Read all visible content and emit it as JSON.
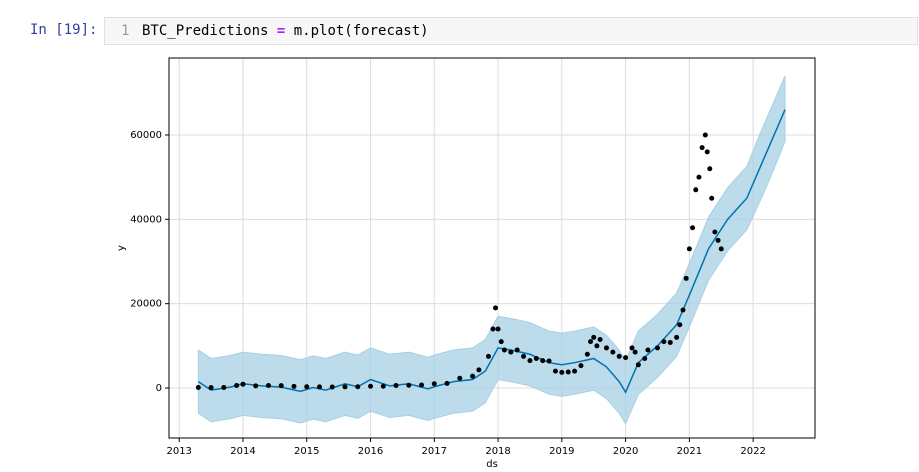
{
  "cell": {
    "prompt": "In [19]:",
    "line_number": "1",
    "code": [
      "BTC_Predictions ",
      "=",
      " m.plot(forecast)"
    ]
  },
  "chart_data": {
    "type": "prophet",
    "xlabel": "ds",
    "ylabel": "y",
    "xlim": [
      2012.84,
      2022.97
    ],
    "ylim": [
      -11860,
      78260
    ],
    "xticks": [
      2013,
      2014,
      2015,
      2016,
      2017,
      2018,
      2019,
      2020,
      2021,
      2022
    ],
    "yticks": [
      0,
      20000,
      40000,
      60000
    ],
    "grid": true,
    "observed": {
      "color": "#000000",
      "x": [
        2013.3,
        2013.5,
        2013.7,
        2013.9,
        2014.0,
        2014.2,
        2014.4,
        2014.6,
        2014.8,
        2015.0,
        2015.2,
        2015.4,
        2015.6,
        2015.8,
        2016.0,
        2016.2,
        2016.4,
        2016.6,
        2016.8,
        2017.0,
        2017.2,
        2017.4,
        2017.6,
        2017.7,
        2017.85,
        2017.92,
        2017.96,
        2018.0,
        2018.05,
        2018.1,
        2018.2,
        2018.3,
        2018.4,
        2018.5,
        2018.6,
        2018.7,
        2018.8,
        2018.9,
        2019.0,
        2019.1,
        2019.2,
        2019.3,
        2019.4,
        2019.45,
        2019.5,
        2019.55,
        2019.6,
        2019.7,
        2019.8,
        2019.9,
        2020.0,
        2020.1,
        2020.15,
        2020.2,
        2020.3,
        2020.35,
        2020.5,
        2020.6,
        2020.7,
        2020.8,
        2020.85,
        2020.9,
        2020.95,
        2021.0,
        2021.05,
        2021.1,
        2021.15,
        2021.2,
        2021.25,
        2021.28,
        2021.32,
        2021.35,
        2021.4,
        2021.45,
        2021.5
      ],
      "values": [
        120,
        100,
        130,
        600,
        900,
        500,
        600,
        550,
        380,
        300,
        250,
        240,
        270,
        300,
        420,
        420,
        600,
        650,
        700,
        1000,
        1100,
        2300,
        2800,
        4300,
        7500,
        14000,
        19000,
        14000,
        11000,
        9000,
        8500,
        9000,
        7500,
        6500,
        7000,
        6500,
        6400,
        4000,
        3700,
        3800,
        4000,
        5300,
        8000,
        11000,
        12000,
        10000,
        11500,
        9500,
        8500,
        7500,
        7200,
        9500,
        8500,
        5500,
        7000,
        9000,
        9500,
        11000,
        10800,
        12000,
        15000,
        18500,
        26000,
        33000,
        38000,
        47000,
        50000,
        57000,
        60000,
        56000,
        52000,
        45000,
        37000,
        35000,
        33000
      ]
    },
    "forecast": {
      "color": "#0072b2",
      "band_color": "#a6d0e4",
      "x": [
        2013.3,
        2013.5,
        2013.8,
        2014.0,
        2014.3,
        2014.6,
        2014.9,
        2015.1,
        2015.3,
        2015.6,
        2015.8,
        2016.0,
        2016.3,
        2016.6,
        2016.9,
        2017.0,
        2017.3,
        2017.6,
        2017.8,
        2018.0,
        2018.2,
        2018.5,
        2018.8,
        2019.0,
        2019.2,
        2019.5,
        2019.7,
        2019.9,
        2020.0,
        2020.2,
        2020.5,
        2020.8,
        2021.0,
        2021.3,
        2021.6,
        2021.9,
        2022.1,
        2022.3,
        2022.5
      ],
      "values": [
        1500,
        -500,
        200,
        1000,
        500,
        200,
        -800,
        100,
        -500,
        1000,
        300,
        2000,
        500,
        1000,
        -200,
        300,
        1500,
        2000,
        4000,
        9500,
        9000,
        8000,
        6000,
        5500,
        6000,
        7000,
        5000,
        1500,
        -1000,
        6000,
        10000,
        15000,
        22000,
        33000,
        40000,
        45000,
        52000,
        59000,
        66000
      ],
      "lower": [
        -6000,
        -8000,
        -7300,
        -6500,
        -7000,
        -7300,
        -8300,
        -7400,
        -8000,
        -6500,
        -7200,
        -5500,
        -7000,
        -6500,
        -7700,
        -7200,
        -6000,
        -5500,
        -3500,
        2000,
        1500,
        500,
        -1500,
        -2000,
        -1500,
        -500,
        -2500,
        -6000,
        -8500,
        -1500,
        2500,
        7500,
        14500,
        25500,
        32500,
        37500,
        44000,
        51000,
        58500
      ],
      "upper": [
        9000,
        7000,
        7700,
        8500,
        8000,
        7700,
        6700,
        7600,
        7000,
        8500,
        7800,
        9500,
        8000,
        8500,
        7300,
        7800,
        9000,
        9500,
        11500,
        17000,
        16500,
        15500,
        13500,
        13000,
        13500,
        14500,
        12500,
        9000,
        6500,
        13500,
        17500,
        22500,
        29500,
        40500,
        47500,
        52500,
        60000,
        67000,
        74000
      ]
    }
  }
}
